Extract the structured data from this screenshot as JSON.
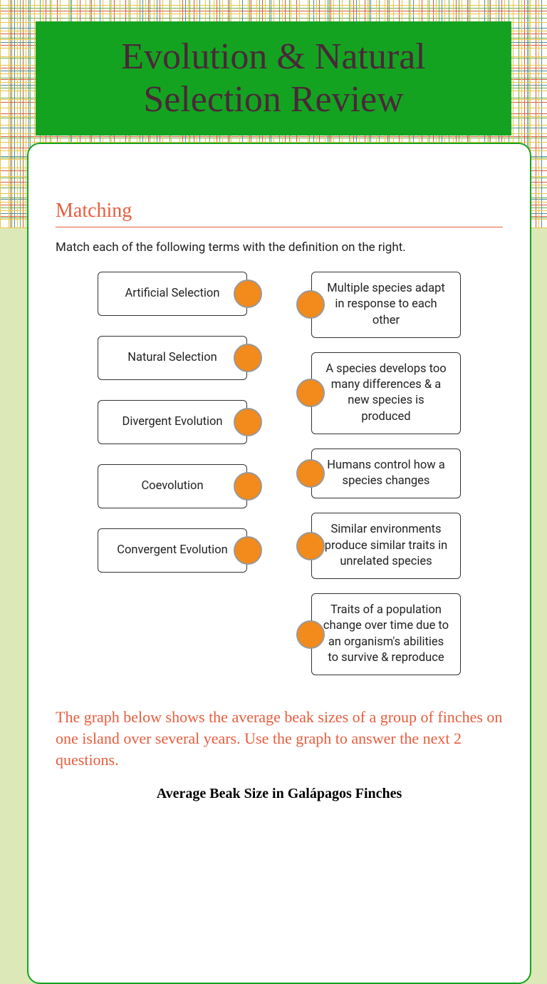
{
  "title": "Evolution & Natural Selection Review",
  "section_heading": "Matching",
  "instructions": "Match each of the following terms with the definition on the right.",
  "terms": [
    "Artificial Selection",
    "Natural Selection",
    "Divergent Evolution",
    "Coevolution",
    "Convergent Evolution"
  ],
  "definitions": [
    "Multiple species adapt in response to each other",
    "A species develops too many differences & a new species is produced",
    "Humans control how a species changes",
    "Similar environments produce similar traits in unrelated species",
    "Traits of a population change over time due to an organism's abilities to survive & reproduce"
  ],
  "graph_intro": "The graph below shows the average beak sizes of a group of finches on one island over several years. Use the graph to answer the next 2 questions.",
  "chart_title": "Average Beak Size in Galápagos Finches",
  "colors": {
    "banner_bg": "#14a321",
    "title_text": "#4a2838",
    "accent": "#e85d3d",
    "dot_fill": "#f28a1c",
    "dot_border": "#999999",
    "card_border": "#14a321",
    "lower_bg": "#dce8b8"
  }
}
